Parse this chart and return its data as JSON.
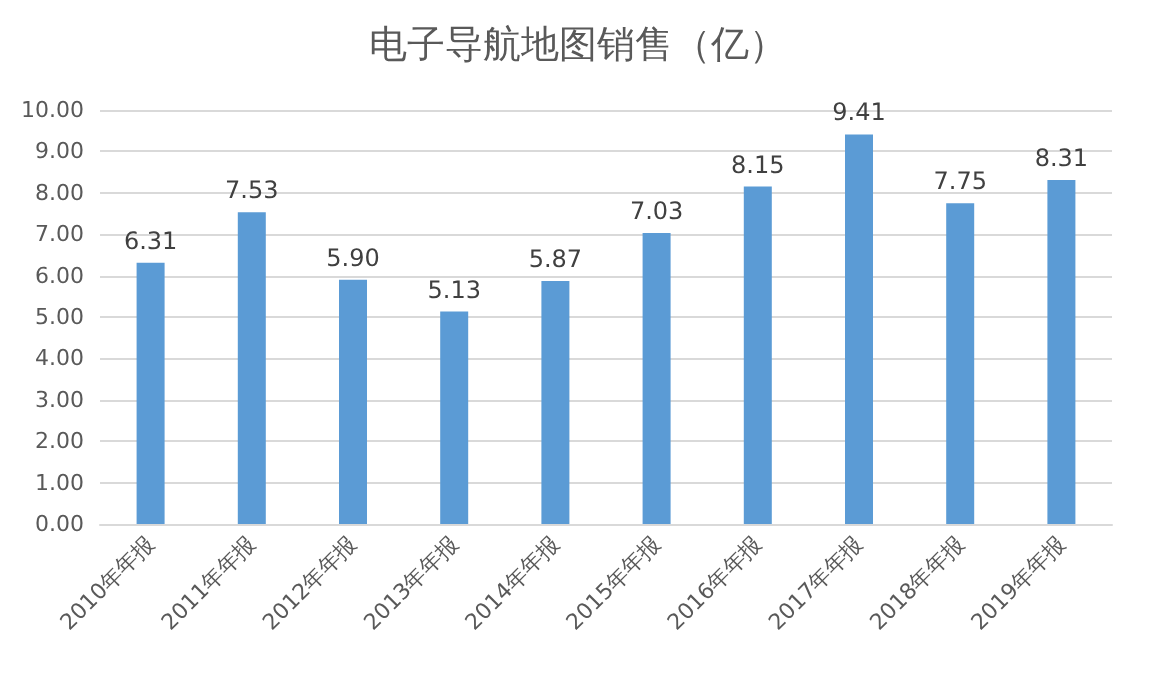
{
  "chart_data": {
    "type": "bar",
    "title": "电子导航地图销售（亿）",
    "categories": [
      "2010年年报",
      "2011年年报",
      "2012年年报",
      "2013年年报",
      "2014年年报",
      "2015年年报",
      "2016年年报",
      "2017年年报",
      "2018年年报",
      "2019年年报"
    ],
    "values": [
      6.31,
      7.53,
      5.9,
      5.13,
      5.87,
      7.03,
      8.15,
      9.41,
      7.75,
      8.31
    ],
    "value_labels": [
      "6.31",
      "7.53",
      "5.90",
      "5.13",
      "5.87",
      "7.03",
      "8.15",
      "9.41",
      "7.75",
      "8.31"
    ],
    "color": "#5b9bd5",
    "ylim": [
      0,
      10
    ],
    "yticks": [
      {
        "value": 0,
        "label": "0.00"
      },
      {
        "value": 1,
        "label": "1.00"
      },
      {
        "value": 2,
        "label": "2.00"
      },
      {
        "value": 3,
        "label": "3.00"
      },
      {
        "value": 4,
        "label": "4.00"
      },
      {
        "value": 5,
        "label": "5.00"
      },
      {
        "value": 6,
        "label": "6.00"
      },
      {
        "value": 7,
        "label": "7.00"
      },
      {
        "value": 8,
        "label": "8.00"
      },
      {
        "value": 9,
        "label": "9.00"
      },
      {
        "value": 10,
        "label": "10.00"
      }
    ],
    "grid": "y"
  }
}
